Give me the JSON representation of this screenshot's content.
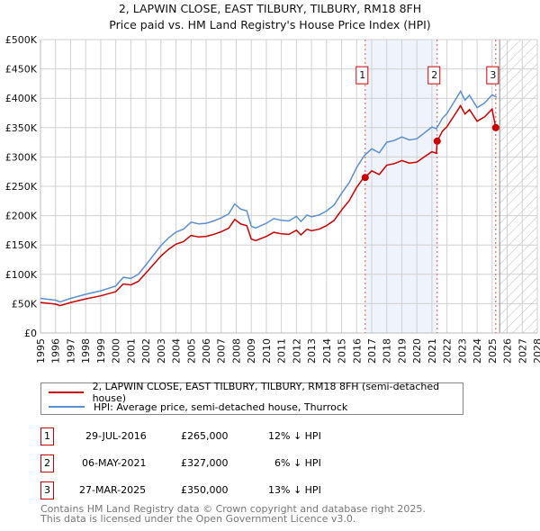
{
  "chart_data": {
    "type": "line",
    "title": "2, LAPWIN CLOSE, EAST TILBURY, TILBURY, RM18 8FH",
    "subtitle": "Price paid vs. HM Land Registry's House Price Index (HPI)",
    "xlim": [
      1995,
      2028
    ],
    "ylim": [
      0,
      500000
    ],
    "x_ticks": [
      "1995",
      "1996",
      "1997",
      "1998",
      "1999",
      "2000",
      "2001",
      "2002",
      "2003",
      "2004",
      "2005",
      "2006",
      "2007",
      "2008",
      "2009",
      "2010",
      "2011",
      "2012",
      "2013",
      "2014",
      "2015",
      "2016",
      "2017",
      "2018",
      "2019",
      "2020",
      "2021",
      "2022",
      "2023",
      "2024",
      "2025",
      "2026",
      "2027",
      "2028"
    ],
    "y_ticks": [
      {
        "v": 0,
        "label": "£0"
      },
      {
        "v": 50000,
        "label": "£50K"
      },
      {
        "v": 100000,
        "label": "£100K"
      },
      {
        "v": 150000,
        "label": "£150K"
      },
      {
        "v": 200000,
        "label": "£200K"
      },
      {
        "v": 250000,
        "label": "£250K"
      },
      {
        "v": 300000,
        "label": "£300K"
      },
      {
        "v": 350000,
        "label": "£350K"
      },
      {
        "v": 400000,
        "label": "£400K"
      },
      {
        "v": 450000,
        "label": "£450K"
      },
      {
        "v": 500000,
        "label": "£500K"
      }
    ],
    "grid": true,
    "shaded_range": [
      2016.57,
      2021.35
    ],
    "forecast_hatch_from": 2025.5,
    "series": [
      {
        "name": "HPI: Average price, semi-detached house, Thurrock",
        "color": "#5b8fd4",
        "x": [
          1995,
          1996,
          1996.3,
          1997,
          1998,
          1999,
          2000,
          2000.5,
          2001,
          2001.5,
          2002,
          2003,
          2003.5,
          2004,
          2004.5,
          2005,
          2005.5,
          2006,
          2006.5,
          2007,
          2007.5,
          2007.9,
          2008.3,
          2008.7,
          2009,
          2009.3,
          2010,
          2010.5,
          2011,
          2011.5,
          2012,
          2012.3,
          2012.7,
          2013,
          2013.5,
          2014,
          2014.5,
          2015,
          2015.5,
          2016,
          2016.5,
          2017,
          2017.5,
          2018,
          2018.5,
          2019,
          2019.5,
          2020,
          2020.5,
          2021,
          2021.3,
          2021.7,
          2022,
          2022.5,
          2022.9,
          2023.2,
          2023.5,
          2024,
          2024.5,
          2025,
          2025.3
        ],
        "y": [
          59000,
          56000,
          53000,
          59000,
          66000,
          72000,
          80000,
          95000,
          93000,
          100000,
          116000,
          149000,
          162000,
          172000,
          177000,
          189000,
          186000,
          187000,
          191000,
          196000,
          203000,
          220000,
          211000,
          208000,
          182000,
          179000,
          187000,
          195000,
          192000,
          191000,
          199000,
          190000,
          201000,
          198000,
          201000,
          208000,
          218000,
          238000,
          256000,
          282000,
          302000,
          314000,
          307000,
          325000,
          328000,
          334000,
          329000,
          331000,
          341000,
          351000,
          348000,
          366000,
          374000,
          395000,
          412000,
          397000,
          405000,
          384000,
          392000,
          406000,
          402000
        ]
      },
      {
        "name": "2, LAPWIN CLOSE, EAST TILBURY, TILBURY, RM18 8FH (semi-detached house)",
        "color": "#cc0000",
        "derived_from_hpi_ratios": [
          {
            "until": 2021.35,
            "ratio": 0.88
          },
          {
            "until": 2025.24,
            "ratio": 0.94
          },
          {
            "until": 2030,
            "ratio": 0.87
          }
        ]
      }
    ],
    "sales": [
      {
        "n": "1",
        "x": 2016.57,
        "price": 265000,
        "date": "29-JUL-2016",
        "price_label": "£265,000",
        "hpi": "12% ↓ HPI"
      },
      {
        "n": "2",
        "x": 2021.35,
        "price": 327000,
        "date": "06-MAY-2021",
        "price_label": "£327,000",
        "hpi": "6% ↓ HPI"
      },
      {
        "n": "3",
        "x": 2025.24,
        "price": 350000,
        "date": "27-MAR-2025",
        "price_label": "£350,000",
        "hpi": "13% ↓ HPI"
      }
    ],
    "legend": {
      "placement": "bottom",
      "property": "2, LAPWIN CLOSE, EAST TILBURY, TILBURY, RM18 8FH (semi-detached house)",
      "hpi": "HPI: Average price, semi-detached house, Thurrock"
    }
  },
  "footer": {
    "line1": "Contains HM Land Registry data © Crown copyright and database right 2025.",
    "line2": "This data is licensed under the Open Government Licence v3.0."
  }
}
